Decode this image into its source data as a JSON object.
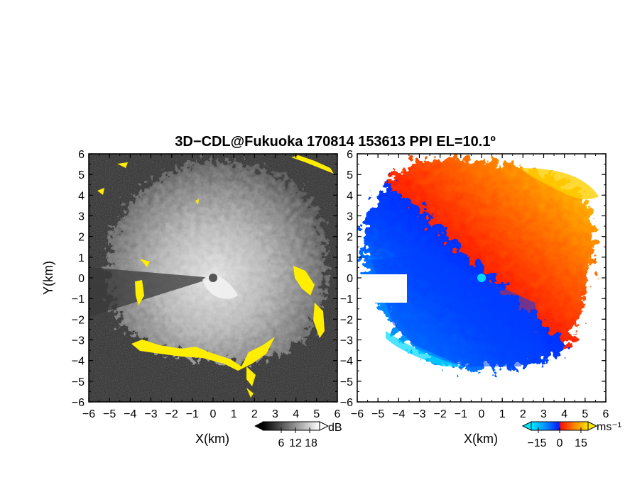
{
  "title": "3D−CDL@Fukuoka 170814 153613 PPI EL=10.1º",
  "chart_data": [
    {
      "type": "heatmap",
      "panel": "left",
      "quantity": "signal-to-noise ratio",
      "xlabel": "X(km)",
      "ylabel": "Y(km)",
      "xlim": [
        -6,
        6
      ],
      "ylim": [
        -6,
        6
      ],
      "xticks": [
        "−6",
        "−5",
        "−4",
        "−3",
        "−2",
        "−1",
        "0",
        "1",
        "2",
        "3",
        "4",
        "5",
        "6"
      ],
      "yticks": [
        "6",
        "5",
        "4",
        "3",
        "2",
        "1",
        "0",
        "−1",
        "−2",
        "−3",
        "−4",
        "−5",
        "−6"
      ],
      "colormap": "grayscale",
      "flag_color": "#ffee00",
      "grid": false,
      "colorbar": {
        "unit": "dB",
        "ticks": [
          "6",
          "12",
          "18"
        ],
        "range": [
          0,
          24
        ]
      }
    },
    {
      "type": "heatmap",
      "panel": "right",
      "quantity": "radial velocity",
      "xlabel": "X(km)",
      "xlim": [
        -6,
        6
      ],
      "ylim": [
        -6,
        6
      ],
      "xticks": [
        "−6",
        "−5",
        "−4",
        "−3",
        "−2",
        "−1",
        "0",
        "1",
        "2",
        "3",
        "4",
        "5",
        "6"
      ],
      "yticks": [
        "6",
        "5",
        "4",
        "3",
        "2",
        "1",
        "0",
        "−1",
        "−2",
        "−3",
        "−4",
        "−5",
        "−6"
      ],
      "colormap": "cyan-blue-red-orange-yellow",
      "colors": {
        "neg_far": "#00e0ff",
        "neg_near": "#0030ff",
        "pos_near": "#ff1800",
        "pos_far": "#ffe000"
      },
      "grid": false,
      "colorbar": {
        "unit": "ms⁻¹",
        "ticks": [
          "−15",
          "0",
          "15"
        ],
        "range": [
          -20,
          20
        ]
      }
    }
  ]
}
